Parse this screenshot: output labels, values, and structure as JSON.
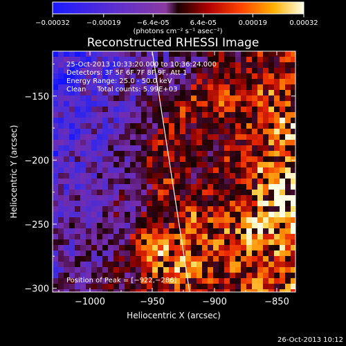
{
  "colorbar": {
    "ticks": [
      "-0.00032",
      "-0.00019",
      "-6.4e-05",
      "6.4e-05",
      "0.00019",
      "0.00032"
    ],
    "units": "(photons cm⁻² s⁻¹ asec⁻²)",
    "range": [
      -0.00032,
      0.00032
    ]
  },
  "chart_data": {
    "type": "heatmap",
    "title": "Reconstructed RHESSI Image",
    "xlabel": "Heliocentric X (arcsec)",
    "ylabel": "Heliocentric Y (arcsec)",
    "xlim": [
      -1030,
      -835
    ],
    "ylim": [
      -303,
      -115
    ],
    "x_ticks": [
      -1000,
      -950,
      -900,
      -850
    ],
    "y_ticks": [
      -150,
      -200,
      -250,
      -300
    ],
    "x_tick_labels": [
      "−1000",
      "−950",
      "−900",
      "−850"
    ],
    "y_tick_labels": [
      "−150",
      "−200",
      "−250",
      "−300"
    ],
    "limb_line": [
      [
        -950,
        -115
      ],
      [
        -920,
        -303
      ]
    ],
    "peak_position": [
      -922,
      -286
    ]
  },
  "info": {
    "line1": "25-Oct-2013 10:33:20.000 to 10:36:24.000",
    "line2": "Detectors: 3F 5F 6F 7F 8F 9F, Att 1",
    "line3": "Energy Range: 25.0 - 50.0 keV",
    "line4": "Clean     Total counts: 5.99E+03",
    "peak": "Position of Peak = [−922,−286]"
  },
  "footer_date": "26-Oct-2013 10:12"
}
